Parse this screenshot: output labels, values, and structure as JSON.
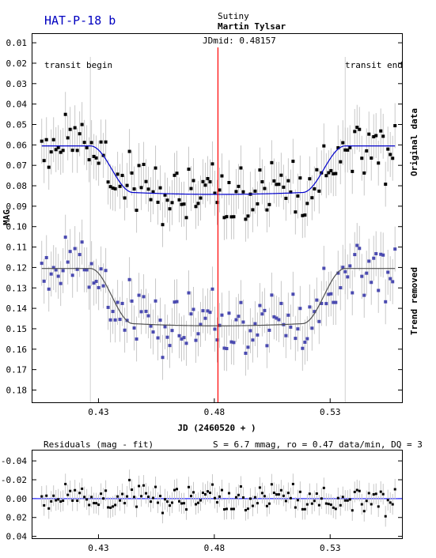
{
  "header": {
    "planet": "HAT-P-18 b",
    "location": "Sutiny",
    "observer": "Martin Tylsar",
    "jdmid": "JDmid: 0.48157",
    "transit_begin": "transit begin",
    "transit_end": "transit end"
  },
  "colors": {
    "planet": "#0000c0",
    "jdmid": "#ff0000",
    "original": "#000000",
    "trend_removed": "#4a4ab0",
    "fit_original": "#0000cc",
    "fit_trend": "#505050",
    "errorbar": "#c8c8c8",
    "transit_marker": "#d0d0d0",
    "zero_line": "#3030ff"
  },
  "chart_data": [
    {
      "type": "scatter",
      "title": "HAT-P-18 b",
      "xlabel": "JD (2460520 + )",
      "ylabel": "MAG",
      "xlim": [
        0.4015,
        0.561
      ],
      "ylim": [
        0.186,
        0.0057
      ],
      "x_ticks": [
        "0.43",
        "0.48",
        "0.53"
      ],
      "y_ticks": [
        "0.01",
        "0.02",
        "0.03",
        "0.04",
        "0.05",
        "0.06",
        "0.07",
        "0.08",
        "0.09",
        "0.10",
        "0.11",
        "0.12",
        "0.13",
        "0.14",
        "0.15",
        "0.16",
        "0.17",
        "0.18"
      ],
      "jdmid": 0.48157,
      "transit_begin_x": 0.4265,
      "transit_end_x": 0.5365,
      "series": [
        {
          "name": "Original data",
          "baseline": 0.0605,
          "depth": 0.0228,
          "scatter": 0.0075,
          "errorbar": 0.011,
          "fit_slope": 0.0,
          "ingress": [
            0.4265,
            0.445
          ],
          "egress": [
            0.518,
            0.5365
          ]
        },
        {
          "name": "Trend removed",
          "baseline": 0.1205,
          "depth": 0.027,
          "scatter": 0.0075,
          "errorbar": 0.011,
          "fit_slope": 0.0,
          "ingress": [
            0.4265,
            0.445
          ],
          "egress": [
            0.518,
            0.5365
          ]
        }
      ]
    },
    {
      "type": "scatter",
      "title": "Residuals (mag - fit)",
      "stats": "S = 6.7 mmag, ro = 0.47 data/min, DQ = 3",
      "xlim": [
        0.4015,
        0.561
      ],
      "ylim": [
        0.042,
        -0.051
      ],
      "x_ticks": [
        "0.43",
        "0.48",
        "0.53"
      ],
      "y_ticks": [
        "-0.04",
        "-0.02",
        "0.00",
        "0.02",
        "0.04"
      ],
      "scatter": 0.0067
    }
  ]
}
